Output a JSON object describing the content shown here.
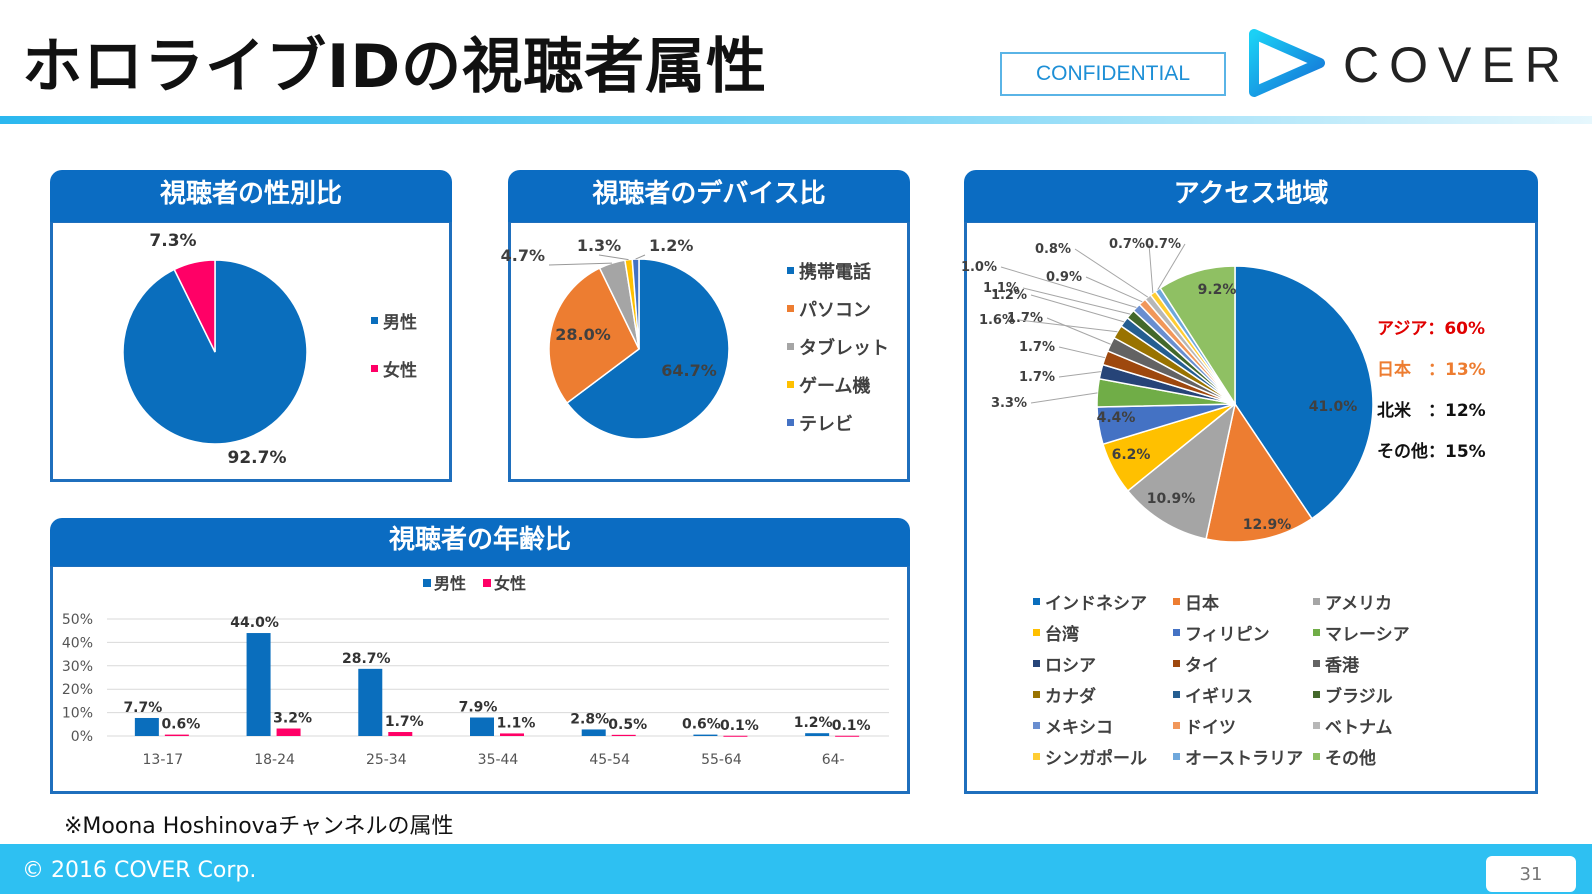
{
  "page": {
    "title": "ホロライブIDの視聴者属性",
    "confidential": "CONFIDENTIAL",
    "logo_text": "COVER",
    "footnote": "※Moona Hoshinovaチャンネルの属性",
    "copyright": "© 2016 COVER Corp.",
    "page_number": "31"
  },
  "panels": {
    "gender": "視聴者の性別比",
    "device": "視聴者のデバイス比",
    "age": "視聴者の年齢比",
    "region": "アクセス地域"
  },
  "colors": {
    "brand_blue": "#0b6cc2",
    "footer": "#2ec0f2",
    "confidential": "#1d8fd6"
  },
  "region_summary": [
    {
      "label": "アジア：60%",
      "color": "#e00000"
    },
    {
      "label": "日本　：13%",
      "color": "#ed7d31"
    },
    {
      "label": "北米　：12%",
      "color": "#111111"
    },
    {
      "label": "その他：15%",
      "color": "#111111"
    }
  ],
  "chart_data": [
    {
      "type": "pie",
      "labels": [
        "男性",
        "女性"
      ],
      "values": [
        92.7,
        7.3
      ],
      "value_labels": [
        "92.7%",
        "7.3%"
      ],
      "colors": [
        "#0a6ebd",
        "#ff0066"
      ],
      "legend": "right"
    },
    {
      "type": "pie",
      "labels": [
        "携帯電話",
        "パソコン",
        "タブレット",
        "ゲーム機",
        "テレビ"
      ],
      "values": [
        64.7,
        28.0,
        4.7,
        1.3,
        1.2
      ],
      "value_labels": [
        "64.7%",
        "28.0%",
        "4.7%",
        "1.3%",
        "1.2%"
      ],
      "colors": [
        "#0a6ebd",
        "#ed7d31",
        "#a5a5a5",
        "#ffc000",
        "#4472c4"
      ],
      "legend": "right"
    },
    {
      "type": "bar",
      "categories": [
        "13-17",
        "18-24",
        "25-34",
        "35-44",
        "45-54",
        "55-64",
        "64-"
      ],
      "series": [
        {
          "name": "男性",
          "values": [
            7.7,
            44.0,
            28.7,
            7.9,
            2.8,
            0.6,
            1.2
          ],
          "labels": [
            "7.7%",
            "44.0%",
            "28.7%",
            "7.9%",
            "2.8%",
            "0.6%",
            "1.2%"
          ],
          "color": "#0a6ebd"
        },
        {
          "name": "女性",
          "values": [
            0.6,
            3.2,
            1.7,
            1.1,
            0.5,
            0.1,
            0.1
          ],
          "labels": [
            "0.6%",
            "3.2%",
            "1.7%",
            "1.1%",
            "0.5%",
            "0.1%",
            "0.1%"
          ],
          "color": "#ff0066"
        }
      ],
      "ylim": [
        0,
        50
      ],
      "yticks": [
        "0%",
        "10%",
        "20%",
        "30%",
        "40%",
        "50%"
      ],
      "grid": true,
      "legend": "top"
    },
    {
      "type": "pie",
      "labels": [
        "インドネシア",
        "日本",
        "アメリカ",
        "台湾",
        "フィリピン",
        "マレーシア",
        "ロシア",
        "タイ",
        "香港",
        "カナダ",
        "イギリス",
        "ブラジル",
        "メキシコ",
        "ドイツ",
        "ベトナム",
        "シンガポール",
        "オーストラリア",
        "その他"
      ],
      "values": [
        41.0,
        12.9,
        10.9,
        6.2,
        4.4,
        3.3,
        1.7,
        1.7,
        1.7,
        1.6,
        1.2,
        1.1,
        1.0,
        0.9,
        0.8,
        0.7,
        0.7,
        9.2
      ],
      "value_labels": [
        "41.0%",
        "12.9%",
        "10.9%",
        "6.2%",
        "4.4%",
        "3.3%",
        "1.7%",
        "1.7%",
        "1.7%",
        "1.6%",
        "1.2%",
        "1.1%",
        "1.0%",
        "0.9%",
        "0.8%",
        "0.7%",
        "0.7%",
        "9.2%"
      ],
      "colors": [
        "#0a6ebd",
        "#ed7d31",
        "#a5a5a5",
        "#ffc000",
        "#4472c4",
        "#70ad47",
        "#264478",
        "#9e480e",
        "#636363",
        "#997300",
        "#255e91",
        "#43682b",
        "#698ed0",
        "#f1975a",
        "#b7b7b7",
        "#ffcd33",
        "#6fa8dc",
        "#8fc063"
      ],
      "legend": "bottom"
    }
  ]
}
